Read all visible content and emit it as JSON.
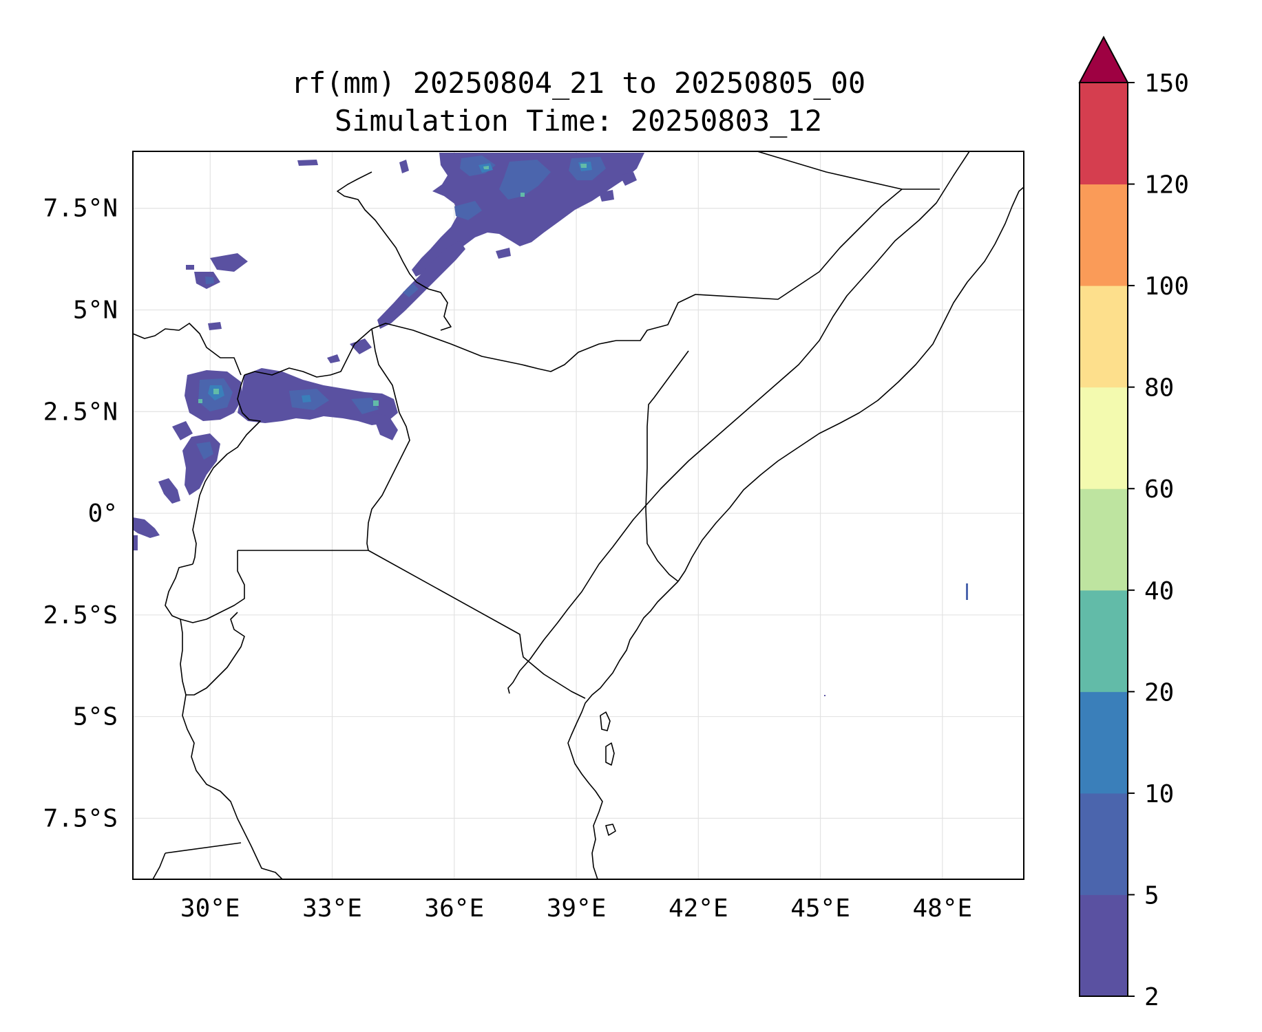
{
  "title_lines": [
    "rf(mm) 20250804_21 to 20250805_00",
    "Simulation Time: 20250803_12"
  ],
  "map": {
    "extent": {
      "lon_min": 28.1,
      "lon_max": 50.0,
      "lat_min": -9.0,
      "lat_max": 8.9
    },
    "lon_ticks": [
      {
        "value": 30,
        "label": "30°E"
      },
      {
        "value": 33,
        "label": "33°E"
      },
      {
        "value": 36,
        "label": "36°E"
      },
      {
        "value": 39,
        "label": "39°E"
      },
      {
        "value": 42,
        "label": "42°E"
      },
      {
        "value": 45,
        "label": "45°E"
      },
      {
        "value": 48,
        "label": "48°E"
      }
    ],
    "lat_ticks": [
      {
        "value": 7.5,
        "label": "7.5°N"
      },
      {
        "value": 5,
        "label": "5°N"
      },
      {
        "value": 2.5,
        "label": "2.5°N"
      },
      {
        "value": 0,
        "label": "0°"
      },
      {
        "value": -2.5,
        "label": "2.5°S"
      },
      {
        "value": -5,
        "label": "5°S"
      },
      {
        "value": -7.5,
        "label": "7.5°S"
      }
    ],
    "gridlines": true
  },
  "colorbar": {
    "levels": [
      2,
      5,
      10,
      20,
      40,
      60,
      80,
      100,
      120,
      150
    ],
    "tick_labels": [
      "2",
      "5",
      "10",
      "20",
      "40",
      "60",
      "80",
      "100",
      "120",
      "150"
    ],
    "colors": [
      "#5a51a1",
      "#4b65ad",
      "#3a7fba",
      "#62bba8",
      "#bee4a0",
      "#f3faaf",
      "#fddf8c",
      "#fa9b58",
      "#d53e4f"
    ],
    "extend_color": "#9e0142",
    "extend": "max"
  },
  "colors": {
    "axis": "#000000",
    "grid": "#e3e3e3",
    "border": "#000000"
  }
}
